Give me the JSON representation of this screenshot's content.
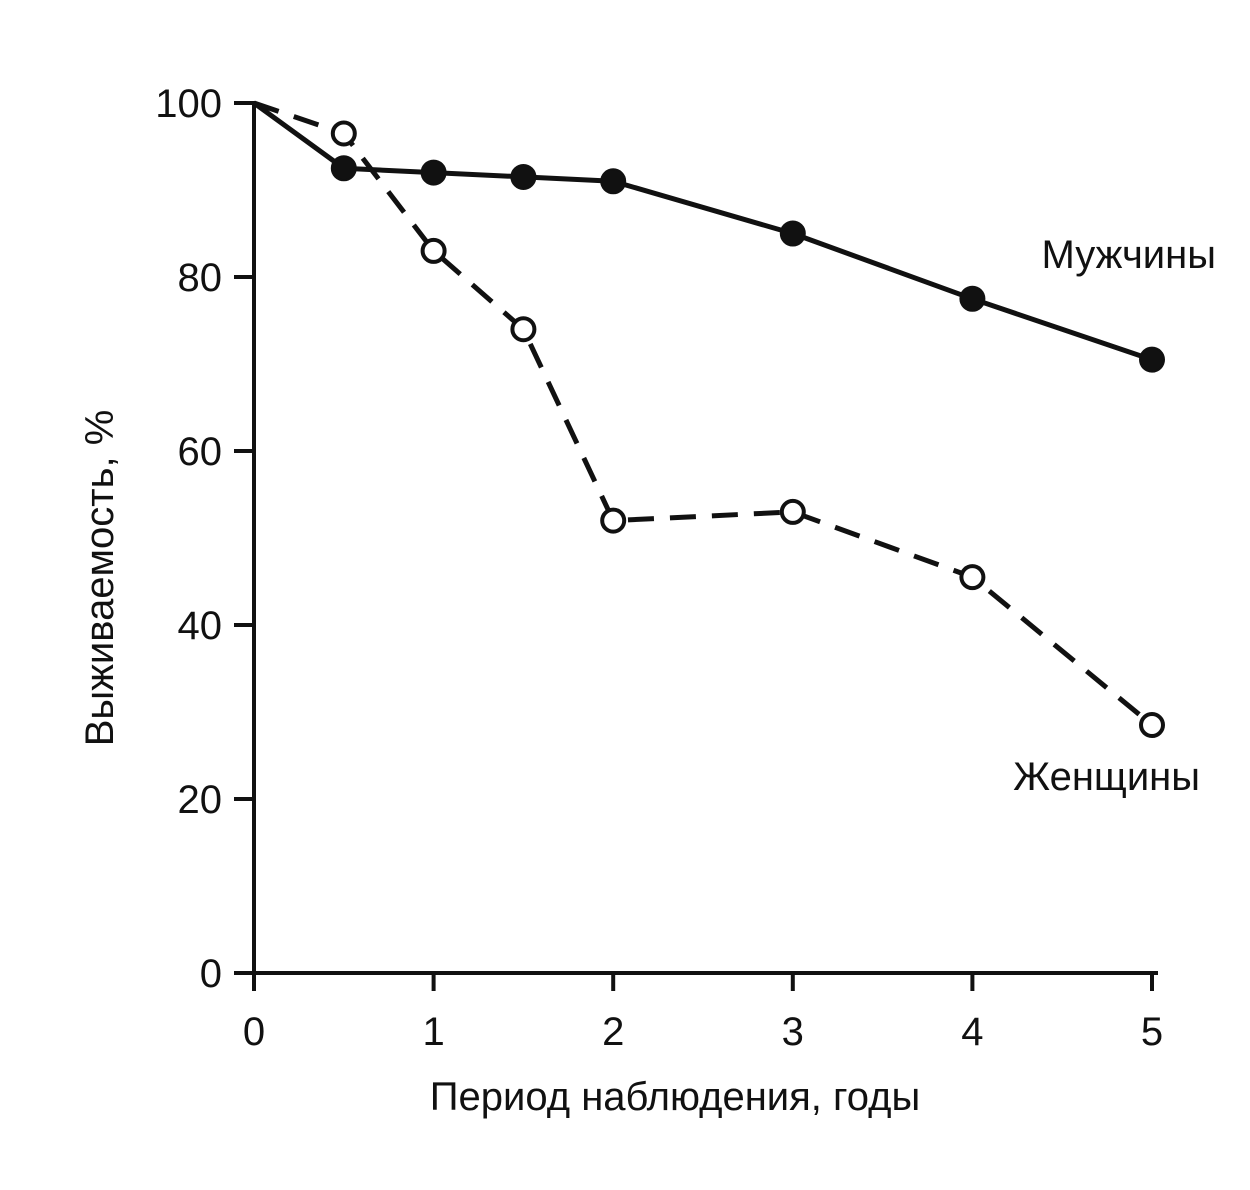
{
  "chart_data": {
    "type": "line",
    "title": "",
    "xlabel": "Период наблюдения, годы",
    "ylabel": "Выживаемость, %",
    "xlim": [
      0,
      5
    ],
    "ylim": [
      0,
      100
    ],
    "xticks": [
      0,
      1,
      2,
      3,
      4,
      5
    ],
    "yticks": [
      0,
      20,
      40,
      60,
      80,
      100
    ],
    "grid": false,
    "series": [
      {
        "name": "Мужчины",
        "line_style": "solid",
        "marker": "filled-circle",
        "color": "#111111",
        "x": [
          0,
          0.5,
          1,
          1.5,
          2,
          3,
          4,
          5
        ],
        "y": [
          100,
          92.5,
          92,
          91.5,
          91,
          85,
          77.5,
          70.5
        ]
      },
      {
        "name": "Женщины",
        "line_style": "dashed",
        "marker": "open-circle",
        "color": "#111111",
        "x": [
          0,
          0.5,
          1,
          1.5,
          2,
          3,
          4,
          5
        ],
        "y": [
          100,
          96.5,
          83,
          74,
          52,
          53,
          45.5,
          28.5
        ]
      }
    ]
  }
}
